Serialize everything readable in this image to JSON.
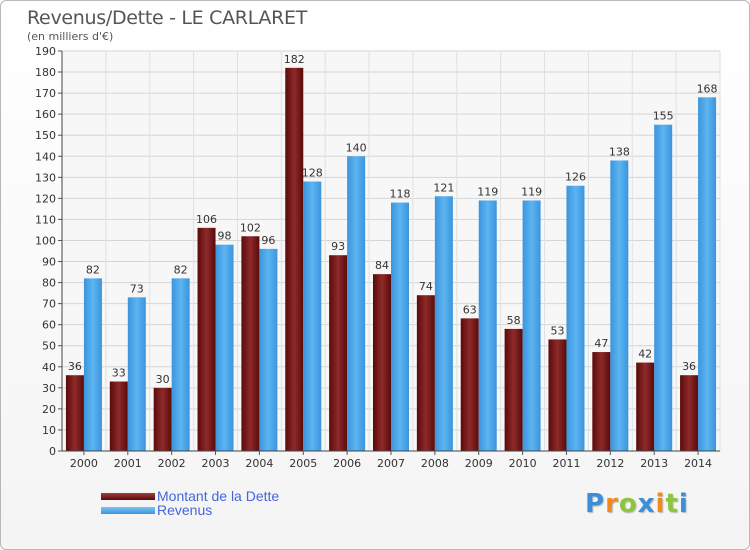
{
  "chart_data": {
    "type": "bar",
    "title": "Revenus/Dette - LE CARLARET",
    "subtitle": "(en milliers d'€)",
    "categories": [
      "2000",
      "2001",
      "2002",
      "2003",
      "2004",
      "2005",
      "2006",
      "2007",
      "2008",
      "2009",
      "2010",
      "2011",
      "2012",
      "2013",
      "2014"
    ],
    "series": [
      {
        "name": "Montant de la Dette",
        "color": "#7a1a1a",
        "values": [
          36,
          33,
          30,
          106,
          102,
          182,
          93,
          84,
          74,
          63,
          58,
          53,
          47,
          42,
          36
        ]
      },
      {
        "name": "Revenus",
        "color": "#4aa3e6",
        "values": [
          82,
          73,
          82,
          98,
          96,
          128,
          140,
          118,
          121,
          119,
          119,
          126,
          138,
          155,
          168
        ]
      }
    ],
    "yticks": [
      0,
      10,
      20,
      30,
      40,
      50,
      60,
      70,
      80,
      90,
      100,
      110,
      120,
      130,
      140,
      150,
      160,
      170,
      180,
      190
    ],
    "ylim": [
      0,
      190
    ],
    "grid": true,
    "legend_position": "bottom-left"
  },
  "logo": {
    "letters": [
      "P",
      "r",
      "o",
      "x",
      "i",
      "t",
      "i"
    ],
    "colors": [
      "#3b8fd8",
      "#f08a1c",
      "#8cc63f",
      "#3b8fd8",
      "#f08a1c",
      "#8cc63f",
      "#3b8fd8"
    ]
  }
}
